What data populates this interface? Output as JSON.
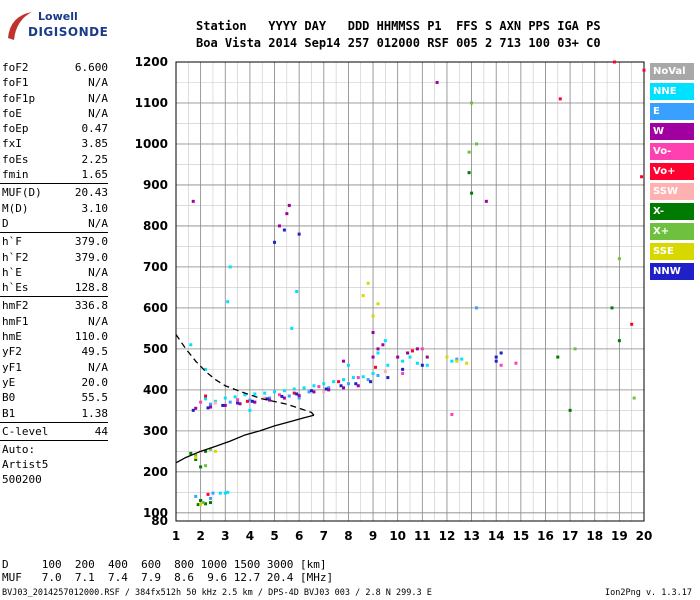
{
  "logo": {
    "line1": "Lowell",
    "line2": "DIGISONDE"
  },
  "header": {
    "line1": "Station   YYYY DAY   DDD HHMMSS P1  FFS S AXN PPS IGA PS",
    "line2": "Boa Vista 2014 Sep14 257 012000 RSF 005 2 713 100 03+ C0"
  },
  "params": {
    "group1": [
      {
        "k": "foF2",
        "v": "6.600"
      },
      {
        "k": "foF1",
        "v": "N/A"
      },
      {
        "k": "foF1p",
        "v": "N/A"
      },
      {
        "k": "foE",
        "v": "N/A"
      },
      {
        "k": "foEp",
        "v": "0.47"
      },
      {
        "k": "fxI",
        "v": "3.85"
      },
      {
        "k": "foEs",
        "v": "2.25"
      },
      {
        "k": "fmin",
        "v": "1.65"
      }
    ],
    "group2": [
      {
        "k": "MUF(D)",
        "v": "20.43"
      },
      {
        "k": "M(D)",
        "v": "3.10"
      },
      {
        "k": "D",
        "v": "N/A"
      }
    ],
    "group3": [
      {
        "k": "h`F",
        "v": "379.0"
      },
      {
        "k": "h`F2",
        "v": "379.0"
      },
      {
        "k": "h`E",
        "v": "N/A"
      },
      {
        "k": "h`Es",
        "v": "128.8"
      }
    ],
    "group4": [
      {
        "k": "hmF2",
        "v": "336.8"
      },
      {
        "k": "hmF1",
        "v": "N/A"
      },
      {
        "k": "hmE",
        "v": "110.0"
      },
      {
        "k": "yF2",
        "v": "49.5"
      },
      {
        "k": "yF1",
        "v": "N/A"
      },
      {
        "k": "yE",
        "v": "20.0"
      },
      {
        "k": "B0",
        "v": "55.5"
      },
      {
        "k": "B1",
        "v": "1.38"
      }
    ],
    "group5": [
      {
        "k": "C-level",
        "v": "44"
      }
    ],
    "extra": [
      "Auto:",
      "Artist5",
      "500200"
    ]
  },
  "footer": {
    "line1": "D     100  200  400  600  800 1000 1500 3000 [km]",
    "line2": "MUF   7.0  7.1  7.4  7.9  8.6  9.6 12.7 20.4 [MHz]",
    "file": "BVJ03_2014257012000.RSF / 384fx512h 50 kHz 2.5 km / DPS-4D BVJ03 003 / 2.8 N 299.3 E",
    "version": "Ion2Png v. 1.3.17"
  },
  "legend": [
    {
      "label": "NoVal",
      "color": "#a8a8a8"
    },
    {
      "label": "NNE",
      "color": "#00e0ff"
    },
    {
      "label": "E",
      "color": "#3aa0ff"
    },
    {
      "label": "W",
      "color": "#a000a0"
    },
    {
      "label": "Vo-",
      "color": "#ff40b0"
    },
    {
      "label": "Vo+",
      "color": "#ff0030"
    },
    {
      "label": "SSW",
      "color": "#ffb0b0"
    },
    {
      "label": "X-",
      "color": "#007a00"
    },
    {
      "label": "X+",
      "color": "#70c040"
    },
    {
      "label": "SSE",
      "color": "#d8d800"
    },
    {
      "label": "NNW",
      "color": "#2020c8"
    }
  ],
  "chart_data": {
    "type": "scatter",
    "xlim": [
      1,
      20
    ],
    "ylim": [
      80,
      1200
    ],
    "xticks": [
      1,
      2,
      3,
      4,
      5,
      6,
      7,
      8,
      9,
      10,
      11,
      12,
      13,
      14,
      15,
      16,
      17,
      18,
      19,
      20
    ],
    "yticks": [
      80,
      100,
      200,
      300,
      400,
      500,
      600,
      700,
      800,
      900,
      1000,
      1100,
      1200
    ],
    "xminor": 0.5,
    "yminor": 50,
    "grid": true,
    "series": [
      {
        "name": "NNE",
        "points": [
          [
            2.2,
            378
          ],
          [
            2.6,
            372
          ],
          [
            3.0,
            380
          ],
          [
            3.4,
            383
          ],
          [
            3.8,
            388
          ],
          [
            4.2,
            390
          ],
          [
            4.6,
            392
          ],
          [
            5.0,
            395
          ],
          [
            5.4,
            398
          ],
          [
            5.8,
            402
          ],
          [
            6.2,
            405
          ],
          [
            6.6,
            410
          ],
          [
            7.0,
            415
          ],
          [
            7.4,
            420
          ],
          [
            7.8,
            425
          ],
          [
            8.2,
            430
          ],
          [
            8.6,
            432
          ],
          [
            9.0,
            440
          ],
          [
            2.8,
            148
          ],
          [
            3.0,
            148
          ],
          [
            3.1,
            150
          ],
          [
            5.7,
            550
          ],
          [
            5.9,
            640
          ],
          [
            3.2,
            700
          ],
          [
            9.6,
            460
          ],
          [
            10.2,
            470
          ],
          [
            10.8,
            465
          ],
          [
            11.2,
            460
          ],
          [
            12.2,
            470
          ],
          [
            12.6,
            475
          ],
          [
            3.1,
            615
          ],
          [
            1.6,
            510
          ],
          [
            2.2,
            450
          ],
          [
            4.0,
            350
          ],
          [
            8.0,
            460
          ],
          [
            9.2,
            490
          ],
          [
            9.5,
            520
          ],
          [
            10.5,
            480
          ]
        ]
      },
      {
        "name": "E",
        "points": [
          [
            2.4,
            365
          ],
          [
            3.2,
            370
          ],
          [
            4.0,
            375
          ],
          [
            4.8,
            380
          ],
          [
            5.6,
            385
          ],
          [
            6.4,
            395
          ],
          [
            7.2,
            405
          ],
          [
            8.0,
            415
          ],
          [
            8.8,
            425
          ],
          [
            9.2,
            435
          ],
          [
            2.5,
            148
          ],
          [
            1.8,
            140
          ],
          [
            2.4,
            135
          ],
          [
            12.4,
            475
          ],
          [
            13.2,
            600
          ],
          [
            6.0,
            380
          ]
        ]
      },
      {
        "name": "W",
        "points": [
          [
            1.8,
            355
          ],
          [
            2.4,
            358
          ],
          [
            3.0,
            362
          ],
          [
            3.6,
            366
          ],
          [
            4.2,
            370
          ],
          [
            4.8,
            375
          ],
          [
            5.4,
            380
          ],
          [
            6.0,
            386
          ],
          [
            6.6,
            395
          ],
          [
            7.2,
            400
          ],
          [
            7.8,
            405
          ],
          [
            8.4,
            410
          ],
          [
            9.0,
            480
          ],
          [
            9.2,
            500
          ],
          [
            9.4,
            510
          ],
          [
            10.0,
            480
          ],
          [
            10.4,
            490
          ],
          [
            10.8,
            500
          ],
          [
            11.2,
            480
          ],
          [
            5.5,
            830
          ],
          [
            5.6,
            850
          ],
          [
            5.2,
            800
          ],
          [
            1.7,
            860
          ],
          [
            11.6,
            1150
          ],
          [
            13.6,
            860
          ],
          [
            9.0,
            540
          ],
          [
            7.8,
            470
          ]
        ]
      },
      {
        "name": "Vo-",
        "points": [
          [
            2.0,
            370
          ],
          [
            3.5,
            376
          ],
          [
            5.2,
            388
          ],
          [
            6.8,
            408
          ],
          [
            8.4,
            430
          ],
          [
            10.2,
            440
          ],
          [
            11.0,
            500
          ],
          [
            12.2,
            340
          ],
          [
            14.2,
            460
          ],
          [
            14.8,
            465
          ]
        ]
      },
      {
        "name": "Vo+",
        "points": [
          [
            2.2,
            385
          ],
          [
            3.9,
            372
          ],
          [
            5.8,
            392
          ],
          [
            7.6,
            420
          ],
          [
            9.1,
            455
          ],
          [
            10.6,
            495
          ],
          [
            19.5,
            560
          ],
          [
            19.9,
            920
          ],
          [
            20,
            1180
          ],
          [
            18.8,
            1200
          ],
          [
            16.6,
            1110
          ],
          [
            2.3,
            145
          ],
          [
            2.0,
            130
          ]
        ]
      },
      {
        "name": "SSW",
        "points": [
          [
            2.6,
            368
          ],
          [
            4.6,
            380
          ],
          [
            7.0,
            395
          ],
          [
            9.5,
            445
          ],
          [
            2.0,
            250
          ]
        ]
      },
      {
        "name": "X-",
        "points": [
          [
            1.6,
            245
          ],
          [
            1.8,
            230
          ],
          [
            2.0,
            212
          ],
          [
            2.2,
            250
          ],
          [
            2.0,
            130
          ],
          [
            1.9,
            120
          ],
          [
            2.2,
            122
          ],
          [
            2.4,
            125
          ],
          [
            12.9,
            930
          ],
          [
            13.0,
            880
          ],
          [
            16.5,
            480
          ],
          [
            17.0,
            350
          ],
          [
            18.7,
            600
          ],
          [
            19.0,
            520
          ]
        ]
      },
      {
        "name": "X+",
        "points": [
          [
            1.8,
            240
          ],
          [
            2.2,
            215
          ],
          [
            2.4,
            255
          ],
          [
            2.1,
            125
          ],
          [
            13.2,
            1000
          ],
          [
            13.0,
            1100
          ],
          [
            12.9,
            980
          ],
          [
            17.2,
            500
          ],
          [
            19.6,
            380
          ],
          [
            19.0,
            720
          ]
        ]
      },
      {
        "name": "SSE",
        "points": [
          [
            8.6,
            630
          ],
          [
            8.8,
            660
          ],
          [
            9.0,
            580
          ],
          [
            9.2,
            610
          ],
          [
            12.0,
            480
          ],
          [
            12.4,
            470
          ],
          [
            12.8,
            465
          ],
          [
            2.6,
            250
          ],
          [
            1.8,
            235
          ],
          [
            2.0,
            120
          ]
        ]
      },
      {
        "name": "NNW",
        "points": [
          [
            1.7,
            350
          ],
          [
            2.3,
            356
          ],
          [
            2.9,
            362
          ],
          [
            3.5,
            368
          ],
          [
            4.1,
            372
          ],
          [
            4.7,
            378
          ],
          [
            5.3,
            384
          ],
          [
            5.9,
            390
          ],
          [
            6.5,
            398
          ],
          [
            7.1,
            402
          ],
          [
            7.7,
            410
          ],
          [
            8.3,
            415
          ],
          [
            8.9,
            420
          ],
          [
            9.6,
            430
          ],
          [
            10.2,
            450
          ],
          [
            11.0,
            460
          ],
          [
            14.0,
            480
          ],
          [
            14.2,
            490
          ],
          [
            14.0,
            470
          ],
          [
            5.0,
            760
          ],
          [
            5.4,
            790
          ],
          [
            6.0,
            780
          ]
        ]
      }
    ],
    "profile": [
      [
        1,
        222
      ],
      [
        1.4,
        235
      ],
      [
        2.0,
        250
      ],
      [
        2.6,
        262
      ],
      [
        3.2,
        275
      ],
      [
        3.8,
        290
      ],
      [
        4.4,
        300
      ],
      [
        5.0,
        312
      ],
      [
        5.6,
        322
      ],
      [
        6.2,
        332
      ],
      [
        6.6,
        338
      ],
      [
        6.5,
        345
      ],
      [
        6.0,
        355
      ],
      [
        5.5,
        365
      ],
      [
        4.5,
        378
      ],
      [
        3.8,
        392
      ],
      [
        3.0,
        410
      ],
      [
        2.6,
        425
      ],
      [
        2.2,
        445
      ],
      [
        1.8,
        470
      ],
      [
        1.4,
        500
      ],
      [
        1,
        535
      ]
    ]
  }
}
